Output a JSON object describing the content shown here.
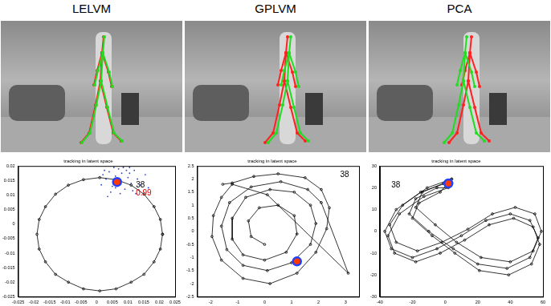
{
  "columns": [
    "LELVM",
    "GPLVM",
    "PCA"
  ],
  "chart_data": [
    {
      "type": "line",
      "title": "tracking in latent space",
      "grid": false,
      "xlim": [
        -0.025,
        0.025
      ],
      "xticks": [
        -0.025,
        -0.02,
        -0.015,
        -0.01,
        -0.005,
        0,
        0.005,
        0.01,
        0.015,
        0.02,
        0.025
      ],
      "ylim": [
        -0.025,
        0.02
      ],
      "yticks": [
        -0.025,
        -0.02,
        -0.015,
        -0.01,
        -0.005,
        0,
        0.005,
        0.01,
        0.015,
        0.02
      ],
      "series": [
        {
          "type": "line",
          "color": "#000000",
          "marker": "ring",
          "x": [
            0.021,
            0.0203,
            0.0183,
            0.0151,
            0.011,
            0.0062,
            0.001,
            -0.0042,
            -0.009,
            -0.0131,
            -0.0163,
            -0.0183,
            -0.019,
            -0.0183,
            -0.0163,
            -0.0131,
            -0.009,
            -0.0042,
            0.001,
            0.0062,
            0.011,
            0.0151,
            0.0183,
            0.0203,
            0.021
          ],
          "values": [
            -0.0035,
            0.0016,
            0.006,
            0.0103,
            0.0134,
            0.0153,
            0.016,
            0.0153,
            0.0134,
            0.0103,
            0.006,
            0.0016,
            -0.0035,
            -0.0086,
            -0.013,
            -0.0173,
            -0.02,
            -0.0223,
            -0.023,
            -0.0223,
            -0.02,
            -0.0173,
            -0.013,
            -0.0086,
            -0.0035
          ]
        },
        {
          "type": "scatter",
          "color": "#2b3fd6",
          "marker": "dot",
          "x": [
            0.004,
            0.006,
            0.008,
            0.01,
            0.012,
            0.005,
            0.009,
            0.011,
            0.003,
            0.007,
            0.013,
            0.002,
            0.0085,
            0.0105,
            0.006,
            0.014,
            0.0045,
            0.0115,
            0.0015,
            0.0095,
            0.0075,
            0.0155,
            0.0055,
            0.0125,
            0.0025,
            0.0165,
            0.0035,
            0.0105
          ],
          "values": [
            0.018,
            0.0165,
            0.0175,
            0.016,
            0.0185,
            0.013,
            0.012,
            0.014,
            0.0155,
            0.019,
            0.0155,
            0.017,
            0.0195,
            0.0175,
            0.0125,
            0.0135,
            0.011,
            0.0115,
            0.0135,
            0.0185,
            0.0105,
            0.017,
            0.0195,
            0.0105,
            0.0185,
            0.0125,
            0.0095,
            0.0195
          ]
        },
        {
          "type": "scatter",
          "color": "#ff3a00",
          "marker": "blob",
          "x": [
            0.0065
          ],
          "values": [
            0.0145
          ]
        }
      ],
      "annotations": [
        {
          "text": "38",
          "x": 0.0125,
          "y": 0.0135,
          "color": "#000000"
        },
        {
          "text": "0.99",
          "x": 0.0125,
          "y": 0.0105,
          "color": "#e00000"
        }
      ]
    },
    {
      "type": "line",
      "title": "tracking in latent space",
      "grid": false,
      "xlim": [
        -2.5,
        3.5
      ],
      "xticks": [
        -2,
        -1,
        0,
        1,
        2,
        3
      ],
      "ylim": [
        -2.5,
        2.5
      ],
      "yticks": [
        -2.5,
        -2,
        -1.5,
        -1,
        -0.5,
        0,
        0.5,
        1,
        1.5,
        2,
        2.5
      ],
      "series": [
        {
          "type": "line",
          "color": "#000000",
          "marker": "ring",
          "x": [
            -1.55,
            -1.2,
            -0.4,
            0.5,
            1.5,
            2.1,
            2.4,
            2.3,
            1.9,
            1.2,
            0.2,
            -0.8,
            -1.6,
            -1.95,
            -1.9,
            -1.6,
            -1.2,
            0.1,
            3.1,
            2.1,
            1.6,
            0.6,
            -0.5,
            -1.3,
            -1.6,
            -1.4,
            -0.8,
            0.1,
            1.0,
            1.7,
            1.9,
            1.7,
            1.1,
            0.2,
            -0.7,
            -1.2,
            -1.2,
            -0.8,
            0.0,
            0.8,
            1.2,
            1.1,
            0.5,
            -0.2,
            -0.6,
            -0.5,
            0.0
          ],
          "values": [
            1.8,
            1.85,
            2.1,
            2.2,
            2.05,
            1.6,
            0.9,
            0.1,
            -0.8,
            -1.6,
            -2.0,
            -1.8,
            -1.1,
            -0.2,
            0.6,
            1.3,
            1.8,
            1.4,
            -1.6,
            1.1,
            1.6,
            1.9,
            1.7,
            1.1,
            0.2,
            -0.7,
            -1.3,
            -1.5,
            -1.2,
            -0.5,
            0.3,
            1.0,
            1.5,
            1.6,
            1.3,
            0.5,
            -0.3,
            -0.9,
            -1.1,
            -0.8,
            -0.1,
            0.6,
            1.0,
            0.9,
            0.4,
            -0.2,
            -0.5
          ]
        },
        {
          "type": "scatter",
          "color": "#ff3a00",
          "marker": "blob",
          "x": [
            1.2
          ],
          "values": [
            -1.15
          ]
        }
      ],
      "annotations": [
        {
          "text": "38",
          "x": 2.8,
          "y": 2.15,
          "color": "#000000"
        }
      ]
    },
    {
      "type": "line",
      "title": "tracking in latent space",
      "grid": false,
      "xlim": [
        -40,
        60
      ],
      "xticks": [
        -40,
        -20,
        0,
        20,
        40,
        60
      ],
      "ylim": [
        -30,
        30
      ],
      "yticks": [
        -30,
        -20,
        -10,
        0,
        10,
        20,
        30
      ],
      "series": [
        {
          "type": "line",
          "color": "#000000",
          "marker": "ring",
          "x": [
            0,
            -15,
            -30,
            -37,
            -33,
            -20,
            -5,
            10,
            25,
            40,
            52,
            57,
            52,
            38,
            20,
            5,
            -10,
            -22,
            -18,
            -5,
            2,
            -13,
            -28,
            -35,
            -31,
            -18,
            -3,
            12,
            27,
            42,
            54,
            58,
            53,
            39,
            21,
            6,
            -8,
            -20,
            -16,
            -3,
            4,
            -11,
            -26,
            -34,
            -30,
            -17,
            -2,
            14,
            29,
            43,
            55,
            59,
            54,
            40,
            22,
            7,
            -6,
            -18,
            -14,
            -1,
            4
          ],
          "values": [
            22,
            18,
            10,
            0,
            -8,
            -12,
            -8,
            -2,
            5,
            8,
            5,
            -3,
            -12,
            -17,
            -15,
            -8,
            0,
            8,
            15,
            20,
            20,
            16,
            8,
            -2,
            -10,
            -14,
            -10,
            -4,
            3,
            6,
            2,
            -6,
            -15,
            -20,
            -18,
            -10,
            -2,
            6,
            13,
            18,
            24,
            20,
            12,
            3,
            -5,
            -9,
            -5,
            1,
            8,
            11,
            8,
            0,
            -9,
            -14,
            -12,
            -5,
            3,
            11,
            18,
            22,
            24
          ]
        },
        {
          "type": "scatter",
          "color": "#ff3a00",
          "marker": "blob",
          "x": [
            2
          ],
          "values": [
            22
          ]
        }
      ],
      "annotations": [
        {
          "text": "38",
          "x": -33,
          "y": 21,
          "color": "#000000"
        }
      ]
    }
  ]
}
